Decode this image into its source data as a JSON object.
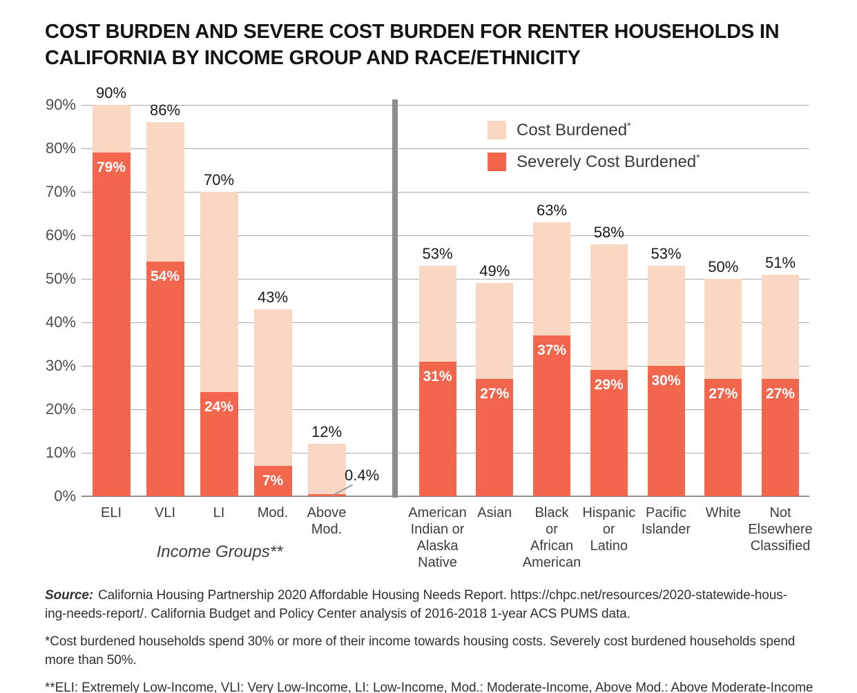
{
  "title": {
    "line1": "COST BURDEN AND SEVERE COST BURDEN FOR RENTER HOUSEHOLDS IN",
    "line2": "CALIFORNIA BY INCOME GROUP AND RACE/ETHNICITY"
  },
  "colors": {
    "cost_burdened": "#fad7c2",
    "severely_cost_burdened": "#f2664d",
    "gridline": "#a9a9a9",
    "baseline": "#8f8f8f",
    "divider": "#8d8d8d"
  },
  "chart_data": {
    "type": "bar",
    "title": "COST BURDEN AND SEVERE COST BURDEN FOR RENTER HOUSEHOLDS IN CALIFORNIA BY INCOME GROUP AND RACE/ETHNICITY",
    "xlabel": "",
    "ylabel": "",
    "ylim": [
      0,
      90
    ],
    "grid": true,
    "yticks": [
      {
        "value": 90,
        "label": "90%"
      },
      {
        "value": 80,
        "label": "80%"
      },
      {
        "value": 70,
        "label": "70%"
      },
      {
        "value": 60,
        "label": "60%"
      },
      {
        "value": 50,
        "label": "50%"
      },
      {
        "value": 40,
        "label": "40%"
      },
      {
        "value": 30,
        "label": "30%"
      },
      {
        "value": 20,
        "label": "20%"
      },
      {
        "value": 10,
        "label": "10%"
      },
      {
        "value": 0,
        "label": "0%"
      }
    ],
    "legend": {
      "position": "top-right",
      "items": [
        {
          "label": "Cost Burdened",
          "sup": "*",
          "color": "#fad7c2"
        },
        {
          "label": "Severely Cost Burdened",
          "sup": "*",
          "color": "#f2664d"
        }
      ]
    },
    "groups": [
      {
        "name": "income-groups",
        "axis_label": "Income Groups**",
        "bars": [
          {
            "category": "ELI",
            "total": 90,
            "total_label": "90%",
            "severe": 79,
            "severe_label": "79%"
          },
          {
            "category": "VLI",
            "total": 86,
            "total_label": "86%",
            "severe": 54,
            "severe_label": "54%"
          },
          {
            "category": "LI",
            "total": 70,
            "total_label": "70%",
            "severe": 24,
            "severe_label": "24%"
          },
          {
            "category": "Mod.",
            "total": 43,
            "total_label": "43%",
            "severe": 7,
            "severe_label": "7%"
          },
          {
            "category": "Above\nMod.",
            "total": 12,
            "total_label": "12%",
            "severe": 0.4,
            "severe_label": "0.4%",
            "callout": true
          }
        ]
      },
      {
        "name": "race-ethnicity",
        "axis_label": "",
        "bars": [
          {
            "category": "American\nIndian or\nAlaska\nNative",
            "total": 53,
            "total_label": "53%",
            "severe": 31,
            "severe_label": "31%"
          },
          {
            "category": "Asian",
            "total": 49,
            "total_label": "49%",
            "severe": 27,
            "severe_label": "27%"
          },
          {
            "category": "Black\nor\nAfrican\nAmerican",
            "total": 63,
            "total_label": "63%",
            "severe": 37,
            "severe_label": "37%"
          },
          {
            "category": "Hispanic\nor\nLatino",
            "total": 58,
            "total_label": "58%",
            "severe": 29,
            "severe_label": "29%"
          },
          {
            "category": "Pacific\nIslander",
            "total": 53,
            "total_label": "53%",
            "severe": 30,
            "severe_label": "30%"
          },
          {
            "category": "White",
            "total": 50,
            "total_label": "50%",
            "severe": 27,
            "severe_label": "27%"
          },
          {
            "category": "Not\nElsewhere\nClassified",
            "total": 51,
            "total_label": "51%",
            "severe": 27,
            "severe_label": "27%"
          }
        ]
      }
    ]
  },
  "footer": {
    "source_label": "Source:",
    "source_line1": "California Housing Partnership 2020 Affordable Housing Needs Report. https://chpc.net/resources/2020-statewide-hous-",
    "source_line2": "ing-needs-report/. California Budget and Policy Center analysis of 2016-2018 1-year ACS PUMS data.",
    "note1_line1": "*Cost burdened households spend 30% or more of their income towards housing costs. Severely cost burdened households spend",
    "note1_line2": "more than 50%.",
    "note2": "**ELI: Extremely Low-Income, VLI: Very Low-Income, LI: Low-Income, Mod.: Moderate-Income, Above Mod.: Above Moderate-Income"
  }
}
